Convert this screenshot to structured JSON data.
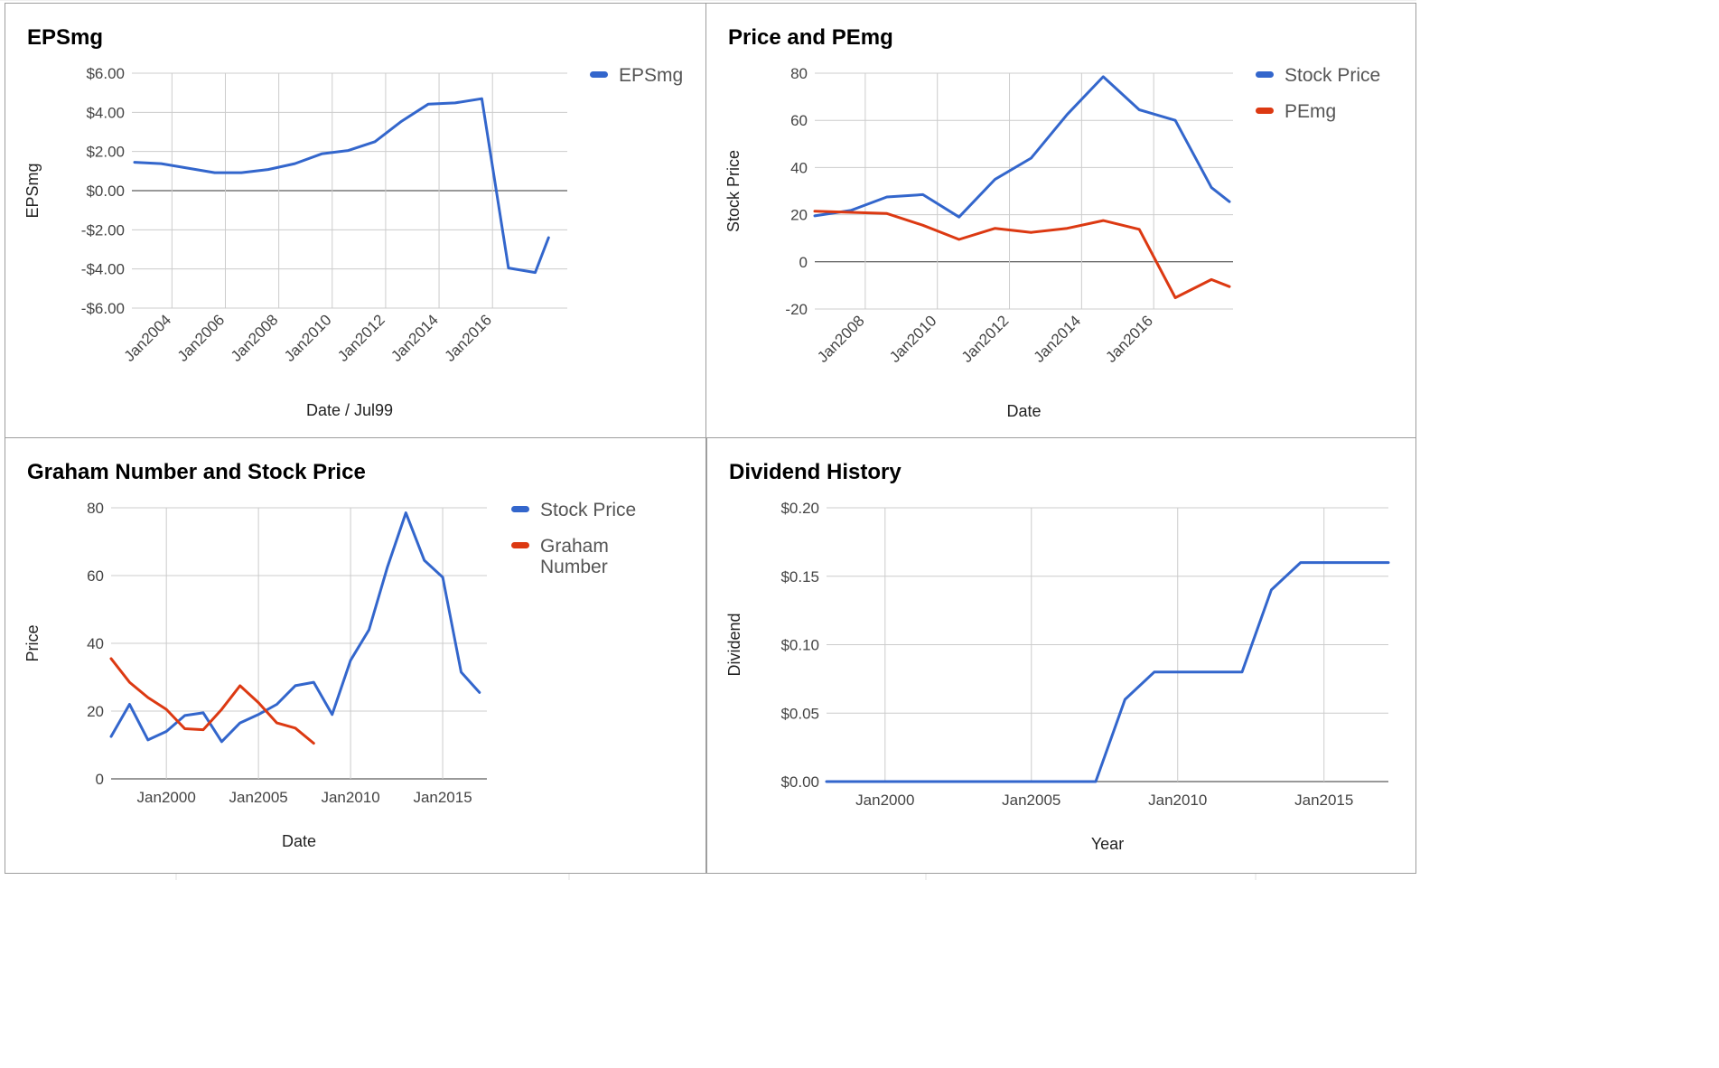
{
  "chart_data": [
    {
      "id": "p1",
      "type": "line",
      "title": "EPSmg",
      "xlabel": "Date / Jul99",
      "ylabel": "EPSmg",
      "x_tick_style": "rotated",
      "y_tick_labels": [
        "$6.00",
        "$4.00",
        "$2.00",
        "$0.00",
        "-$2.00",
        "-$4.00",
        "-$6.00"
      ],
      "ylim": [
        -6,
        6
      ],
      "xlim": [
        2002.5,
        2018.8
      ],
      "x_ticks": [
        {
          "label": "Jan2004",
          "x": 2004.0
        },
        {
          "label": "Jan2006",
          "x": 2006.0
        },
        {
          "label": "Jan2008",
          "x": 2008.0
        },
        {
          "label": "Jan2010",
          "x": 2010.0
        },
        {
          "label": "Jan2012",
          "x": 2012.0
        },
        {
          "label": "Jan2014",
          "x": 2014.0
        },
        {
          "label": "Jan2016",
          "x": 2016.0
        }
      ],
      "legend_position": "right",
      "series": [
        {
          "name": "EPSmg",
          "color": "#3366cc",
          "x": [
            2002.6,
            2003.6,
            2004.6,
            2005.6,
            2006.6,
            2007.6,
            2008.6,
            2009.6,
            2010.6,
            2011.6,
            2012.6,
            2013.6,
            2014.6,
            2015.6,
            2016.6,
            2017.6,
            2018.1
          ],
          "values": [
            1.45,
            1.38,
            1.15,
            0.92,
            0.92,
            1.08,
            1.38,
            1.88,
            2.05,
            2.5,
            3.55,
            4.42,
            4.48,
            4.7,
            -3.95,
            -4.18,
            -2.4
          ]
        }
      ]
    },
    {
      "id": "p2",
      "type": "line",
      "title": "Price and PEmg",
      "xlabel": "Date",
      "ylabel": "Stock Price",
      "x_tick_style": "rotated",
      "y_tick_labels": [
        "80",
        "60",
        "40",
        "20",
        "0",
        "-20"
      ],
      "ylim": [
        -20,
        80
      ],
      "xlim": [
        2006.6,
        2018.2
      ],
      "x_ticks": [
        {
          "label": "Jan2008",
          "x": 2008.0
        },
        {
          "label": "Jan2010",
          "x": 2010.0
        },
        {
          "label": "Jan2012",
          "x": 2012.0
        },
        {
          "label": "Jan2014",
          "x": 2014.0
        },
        {
          "label": "Jan2016",
          "x": 2016.0
        }
      ],
      "legend_position": "right",
      "series": [
        {
          "name": "Stock Price",
          "color": "#3366cc",
          "x": [
            2006.6,
            2007.6,
            2008.6,
            2009.6,
            2010.6,
            2011.6,
            2012.6,
            2013.6,
            2014.6,
            2015.6,
            2016.6,
            2017.6,
            2018.1
          ],
          "values": [
            19.5,
            21.8,
            27.5,
            28.5,
            19.0,
            35.0,
            44.0,
            62.5,
            78.5,
            64.5,
            60.0,
            31.5,
            25.5
          ]
        },
        {
          "name": "PEmg",
          "color": "#dc3912",
          "x": [
            2006.6,
            2007.6,
            2008.6,
            2009.6,
            2010.6,
            2011.6,
            2012.6,
            2013.6,
            2014.6,
            2015.6,
            2016.6,
            2017.6,
            2018.1
          ],
          "values": [
            21.5,
            21.0,
            20.5,
            15.5,
            9.5,
            14.2,
            12.5,
            14.2,
            17.5,
            13.8,
            -15.2,
            -7.5,
            -10.5
          ]
        }
      ]
    },
    {
      "id": "p3",
      "type": "line",
      "title": "Graham Number and Stock Price",
      "xlabel": "Date",
      "ylabel": "Price",
      "x_tick_style": "flat",
      "y_tick_labels": [
        "80",
        "60",
        "40",
        "20",
        "0"
      ],
      "ylim": [
        0,
        80
      ],
      "xlim": [
        1997.0,
        2017.4
      ],
      "x_ticks": [
        {
          "label": "Jan2000",
          "x": 2000.0
        },
        {
          "label": "Jan2005",
          "x": 2005.0
        },
        {
          "label": "Jan2010",
          "x": 2010.0
        },
        {
          "label": "Jan2015",
          "x": 2015.0
        }
      ],
      "legend_position": "right",
      "series": [
        {
          "name": "Stock Price",
          "color": "#3366cc",
          "x": [
            1997.0,
            1998.0,
            1999.0,
            2000.0,
            2001.0,
            2002.0,
            2003.0,
            2004.0,
            2005.0,
            2006.0,
            2007.0,
            2008.0,
            2009.0,
            2010.0,
            2011.0,
            2012.0,
            2013.0,
            2014.0,
            2015.0,
            2016.0,
            2017.0
          ],
          "values": [
            12.5,
            22.0,
            11.5,
            14.0,
            18.7,
            19.5,
            11.0,
            16.5,
            19.0,
            22.0,
            27.5,
            28.5,
            19.0,
            35.0,
            44.0,
            62.5,
            78.5,
            64.5,
            59.5,
            31.5,
            25.5
          ]
        },
        {
          "name": "Graham Number",
          "color": "#dc3912",
          "x": [
            1997.0,
            1998.0,
            1999.0,
            2000.0,
            2001.0,
            2002.0,
            2003.0,
            2004.0,
            2005.0,
            2006.0,
            2007.0,
            2008.0
          ],
          "values": [
            35.5,
            28.5,
            24.0,
            20.5,
            14.8,
            14.5,
            20.5,
            27.5,
            22.5,
            16.5,
            15.0,
            10.5
          ]
        }
      ]
    },
    {
      "id": "p4",
      "type": "line",
      "title": "Dividend History",
      "xlabel": "Year",
      "ylabel": "Dividend",
      "x_tick_style": "flat",
      "y_tick_labels": [
        "$0.20",
        "$0.15",
        "$0.10",
        "$0.05",
        "$0.00"
      ],
      "ylim": [
        0,
        0.2
      ],
      "xlim": [
        1998.0,
        2017.2
      ],
      "x_ticks": [
        {
          "label": "Jan2000",
          "x": 2000.0
        },
        {
          "label": "Jan2005",
          "x": 2005.0
        },
        {
          "label": "Jan2010",
          "x": 2010.0
        },
        {
          "label": "Jan2015",
          "x": 2015.0
        }
      ],
      "legend_position": "none",
      "series": [
        {
          "color": "#3366cc",
          "x": [
            1998.0,
            2007.2,
            2008.2,
            2009.2,
            2010.2,
            2011.2,
            2012.2,
            2013.2,
            2014.2,
            2015.2,
            2016.2,
            2017.2
          ],
          "values": [
            0.0,
            0.0,
            0.06,
            0.08,
            0.08,
            0.08,
            0.08,
            0.14,
            0.16,
            0.16,
            0.16,
            0.16
          ]
        }
      ]
    }
  ]
}
